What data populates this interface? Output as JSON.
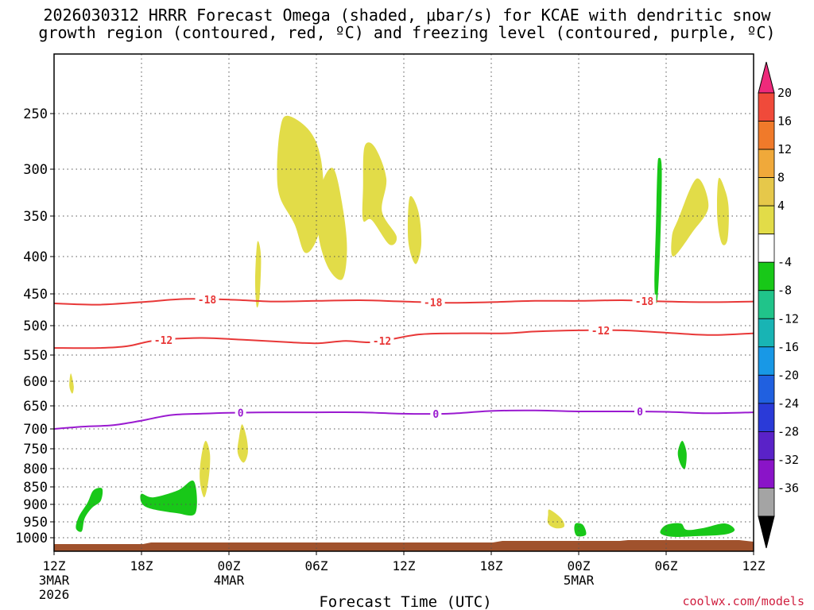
{
  "title_line1": "2026030312 HRRR Forecast Omega (shaded, μbar/s) for KCAE with dendritic snow",
  "title_line2": "growth region (contoured, red, ºC) and freezing level (contoured, purple, ºC)",
  "x_axis_title": "Forecast Time (UTC)",
  "credit": "coolwx.com/models",
  "chart_data": {
    "type": "time-height cross section",
    "x_range_hours": [
      0,
      48
    ],
    "x_ticks": [
      {
        "h": 0,
        "label": "12Z",
        "sub1": "3MAR",
        "sub2": "2026"
      },
      {
        "h": 6,
        "label": "18Z"
      },
      {
        "h": 12,
        "label": "00Z",
        "sub1": "4MAR"
      },
      {
        "h": 18,
        "label": "06Z"
      },
      {
        "h": 24,
        "label": "12Z"
      },
      {
        "h": 30,
        "label": "18Z"
      },
      {
        "h": 36,
        "label": "00Z",
        "sub1": "5MAR"
      },
      {
        "h": 42,
        "label": "06Z"
      },
      {
        "h": 48,
        "label": "12Z"
      }
    ],
    "y_label_unit": "hPa",
    "y_range_hPa": [
      1050,
      200
    ],
    "y_ticks": [
      "250",
      "300",
      "350",
      "400",
      "450",
      "500",
      "550",
      "600",
      "650",
      "700",
      "750",
      "800",
      "850",
      "900",
      "950",
      "1000"
    ],
    "colorbar": {
      "labels": [
        "20",
        "16",
        "12",
        "8",
        "4",
        "-4",
        "-8",
        "-12",
        "-16",
        "-20",
        "-24",
        "-28",
        "-32",
        "-36"
      ],
      "colors": [
        "#ee2a7b",
        "#f04a3a",
        "#f07a2a",
        "#f0a93a",
        "#e6c84a",
        "#e2dc48",
        "#ffffff",
        "#18c818",
        "#20c48a",
        "#18b4b4",
        "#1898e6",
        "#2060e0",
        "#2a3ad8",
        "#5a22c8",
        "#8a14c8",
        "#a4a4a4",
        "#000000"
      ]
    },
    "contours": [
      {
        "name": "-18 °C isotherm",
        "color": "#e83838",
        "label": "-18",
        "label_hours": [
          10.5,
          26,
          40.5
        ],
        "points": [
          [
            0,
            465
          ],
          [
            3,
            467
          ],
          [
            6,
            463
          ],
          [
            9,
            458
          ],
          [
            12,
            459
          ],
          [
            15,
            462
          ],
          [
            18,
            461
          ],
          [
            21,
            460
          ],
          [
            24,
            462
          ],
          [
            27,
            464
          ],
          [
            30,
            463
          ],
          [
            33,
            461
          ],
          [
            36,
            461
          ],
          [
            39,
            460
          ],
          [
            42,
            462
          ],
          [
            45,
            463
          ],
          [
            48,
            462
          ]
        ]
      },
      {
        "name": "-12 °C isotherm",
        "color": "#e83838",
        "label": "-12",
        "label_hours": [
          7.5,
          22.5,
          37.5
        ],
        "points": [
          [
            0,
            538
          ],
          [
            3,
            538
          ],
          [
            5,
            535
          ],
          [
            7,
            525
          ],
          [
            10,
            521
          ],
          [
            13,
            524
          ],
          [
            16,
            528
          ],
          [
            18,
            530
          ],
          [
            20,
            526
          ],
          [
            22,
            528
          ],
          [
            25,
            515
          ],
          [
            28,
            513
          ],
          [
            31,
            513
          ],
          [
            33,
            510
          ],
          [
            36,
            508
          ],
          [
            39,
            508
          ],
          [
            42,
            512
          ],
          [
            45,
            516
          ],
          [
            48,
            513
          ]
        ]
      },
      {
        "name": "0 °C freezing level",
        "color": "#9a1ad0",
        "label": "0",
        "label_hours": [
          12.8,
          26.2,
          40.2
        ],
        "points": [
          [
            0,
            700
          ],
          [
            2,
            695
          ],
          [
            4,
            692
          ],
          [
            6,
            682
          ],
          [
            8,
            670
          ],
          [
            10,
            667
          ],
          [
            12,
            665
          ],
          [
            15,
            664
          ],
          [
            18,
            664
          ],
          [
            21,
            664
          ],
          [
            24,
            667
          ],
          [
            27,
            667
          ],
          [
            30,
            661
          ],
          [
            33,
            660
          ],
          [
            36,
            662
          ],
          [
            39,
            662
          ],
          [
            42,
            663
          ],
          [
            45,
            666
          ],
          [
            48,
            664
          ]
        ]
      }
    ],
    "omega_regions": [
      {
        "sign": "positive",
        "range": "4 to 8",
        "color": "#e2dc48",
        "hours": [
          [
            16,
            252
          ],
          [
            17.5,
            265
          ],
          [
            18.3,
            290
          ],
          [
            18.5,
            340
          ],
          [
            18,
            380
          ],
          [
            17.2,
            395
          ],
          [
            16.5,
            360
          ],
          [
            15.5,
            330
          ],
          [
            15.3,
            300
          ],
          [
            15.5,
            265
          ]
        ]
      },
      {
        "sign": "positive",
        "range": "4 to 8",
        "color": "#e2dc48",
        "hours": [
          [
            18.5,
            310
          ],
          [
            19.2,
            300
          ],
          [
            19.8,
            340
          ],
          [
            20.1,
            390
          ],
          [
            19.8,
            430
          ],
          [
            18.9,
            418
          ],
          [
            18.2,
            380
          ],
          [
            18.1,
            340
          ]
        ]
      },
      {
        "sign": "positive",
        "range": "4 to 8",
        "color": "#e2dc48",
        "hours": [
          [
            21.3,
            280
          ],
          [
            22,
            280
          ],
          [
            22.8,
            310
          ],
          [
            22.5,
            345
          ],
          [
            23.5,
            375
          ],
          [
            23,
            385
          ],
          [
            21.8,
            355
          ],
          [
            21.2,
            355
          ],
          [
            21.2,
            320
          ]
        ]
      },
      {
        "sign": "positive",
        "range": "4 to 8",
        "color": "#e2dc48",
        "hours": [
          [
            24.4,
            330
          ],
          [
            25,
            345
          ],
          [
            25.2,
            385
          ],
          [
            24.8,
            410
          ],
          [
            24.3,
            380
          ]
        ]
      },
      {
        "sign": "positive",
        "range": "4 to 8",
        "color": "#e2dc48",
        "hours": [
          [
            13.95,
            382
          ],
          [
            14.2,
            400
          ],
          [
            14.1,
            455
          ],
          [
            13.9,
            470
          ],
          [
            13.8,
            430
          ]
        ]
      },
      {
        "sign": "positive",
        "range": "4 to 8",
        "color": "#e2dc48",
        "hours": [
          [
            42.8,
            355
          ],
          [
            44.1,
            310
          ],
          [
            44.9,
            340
          ],
          [
            43.8,
            370
          ],
          [
            42.5,
            400
          ],
          [
            42.4,
            375
          ]
        ]
      },
      {
        "sign": "positive",
        "range": "4 to 8",
        "color": "#e2dc48",
        "hours": [
          [
            45.6,
            310
          ],
          [
            46.1,
            325
          ],
          [
            46.3,
            345
          ],
          [
            46.2,
            380
          ],
          [
            45.8,
            383
          ],
          [
            45.5,
            350
          ]
        ]
      },
      {
        "sign": "positive",
        "range": "4 to 8",
        "color": "#e2dc48",
        "hours": [
          [
            1.15,
            585
          ],
          [
            1.35,
            610
          ],
          [
            1.25,
            625
          ],
          [
            1.05,
            610
          ]
        ]
      },
      {
        "sign": "positive",
        "range": "4 to 8",
        "color": "#e2dc48",
        "hours": [
          [
            10.4,
            730
          ],
          [
            10.7,
            765
          ],
          [
            10.6,
            830
          ],
          [
            10.3,
            880
          ],
          [
            10.0,
            830
          ],
          [
            10.1,
            770
          ]
        ]
      },
      {
        "sign": "positive",
        "range": "4 to 8",
        "color": "#e2dc48",
        "hours": [
          [
            12.9,
            690
          ],
          [
            13.2,
            720
          ],
          [
            13.3,
            760
          ],
          [
            13.0,
            785
          ],
          [
            12.6,
            760
          ],
          [
            12.7,
            720
          ]
        ]
      },
      {
        "sign": "positive",
        "range": "4 to 8",
        "color": "#e2dc48",
        "hours": [
          [
            34,
            915
          ],
          [
            34.8,
            940
          ],
          [
            35,
            965
          ],
          [
            34.4,
            970
          ],
          [
            33.9,
            955
          ],
          [
            33.9,
            930
          ]
        ]
      },
      {
        "sign": "negative",
        "range": "-4 to -8",
        "color": "#18c818",
        "hours": [
          [
            41.5,
            290
          ],
          [
            41.7,
            300
          ],
          [
            41.6,
            380
          ],
          [
            41.4,
            460
          ],
          [
            41.2,
            440
          ],
          [
            41.3,
            360
          ],
          [
            41.4,
            300
          ]
        ]
      },
      {
        "sign": "negative",
        "range": "-4 to -8",
        "color": "#18c818",
        "hours": [
          [
            43.1,
            730
          ],
          [
            43.4,
            760
          ],
          [
            43.3,
            800
          ],
          [
            43,
            790
          ],
          [
            42.8,
            760
          ]
        ]
      },
      {
        "sign": "negative",
        "range": "-4 to -8",
        "color": "#18c818",
        "hours": [
          [
            2.7,
            860
          ],
          [
            3.3,
            855
          ],
          [
            3.2,
            890
          ],
          [
            2.6,
            910
          ],
          [
            2.1,
            940
          ],
          [
            1.9,
            980
          ],
          [
            1.5,
            970
          ],
          [
            1.7,
            935
          ],
          [
            2.3,
            895
          ]
        ]
      },
      {
        "sign": "negative",
        "range": "-4 to -8",
        "color": "#18c818",
        "hours": [
          [
            6.0,
            870
          ],
          [
            6.8,
            880
          ],
          [
            8.5,
            860
          ],
          [
            9.6,
            835
          ],
          [
            9.7,
            925
          ],
          [
            8.4,
            925
          ],
          [
            6.6,
            912
          ],
          [
            6.0,
            895
          ]
        ]
      },
      {
        "sign": "negative",
        "range": "-4 to -8",
        "color": "#18c818",
        "hours": [
          [
            35.8,
            955
          ],
          [
            36.3,
            960
          ],
          [
            36.5,
            990
          ],
          [
            35.9,
            995
          ],
          [
            35.7,
            975
          ]
        ]
      },
      {
        "sign": "negative",
        "range": "-4 to -8",
        "color": "#18c818",
        "hours": [
          [
            42,
            960
          ],
          [
            43,
            955
          ],
          [
            43.4,
            975
          ],
          [
            44.5,
            970
          ],
          [
            46,
            955
          ],
          [
            46.7,
            975
          ],
          [
            46,
            990
          ],
          [
            44,
            995
          ],
          [
            42.4,
            997
          ],
          [
            41.6,
            985
          ]
        ]
      }
    ],
    "terrain": {
      "color": "#a0522d",
      "label": "surface / below ground"
    }
  }
}
